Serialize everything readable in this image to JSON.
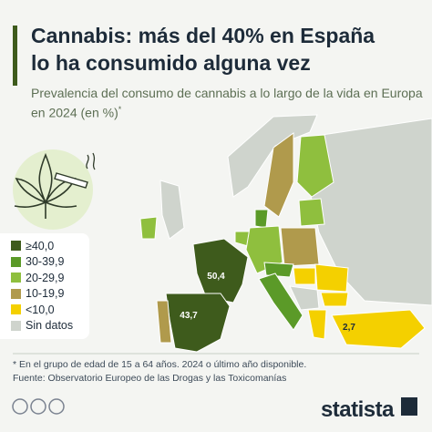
{
  "header": {
    "title_lines": [
      "Cannabis: más del 40% en España",
      "lo ha consumido alguna vez"
    ],
    "subtitle": "Prevalencia del consumo de cannabis a lo largo de la vida en Europa en 2024 (en %)",
    "subtitle_mark": "*"
  },
  "legend": [
    {
      "label": "≥40,0",
      "color": "#3e5b1c"
    },
    {
      "label": "30-39,9",
      "color": "#5b9a28"
    },
    {
      "label": "20-29,9",
      "color": "#8fbf3e"
    },
    {
      "label": "10-19,9",
      "color": "#b09a4c"
    },
    {
      "label": "<10,0",
      "color": "#f4d000"
    },
    {
      "label": "Sin datos",
      "color": "#cfd4cd"
    }
  ],
  "map_labels": [
    "50,4",
    "43,7",
    "2,7"
  ],
  "footer": {
    "note": "* En el grupo de edad de 15 a 64 años. 2024 o último año disponible.",
    "source": "Fuente: Observatorio Europeo de las Drogas y las Toxicomanías",
    "brand": "statista"
  }
}
